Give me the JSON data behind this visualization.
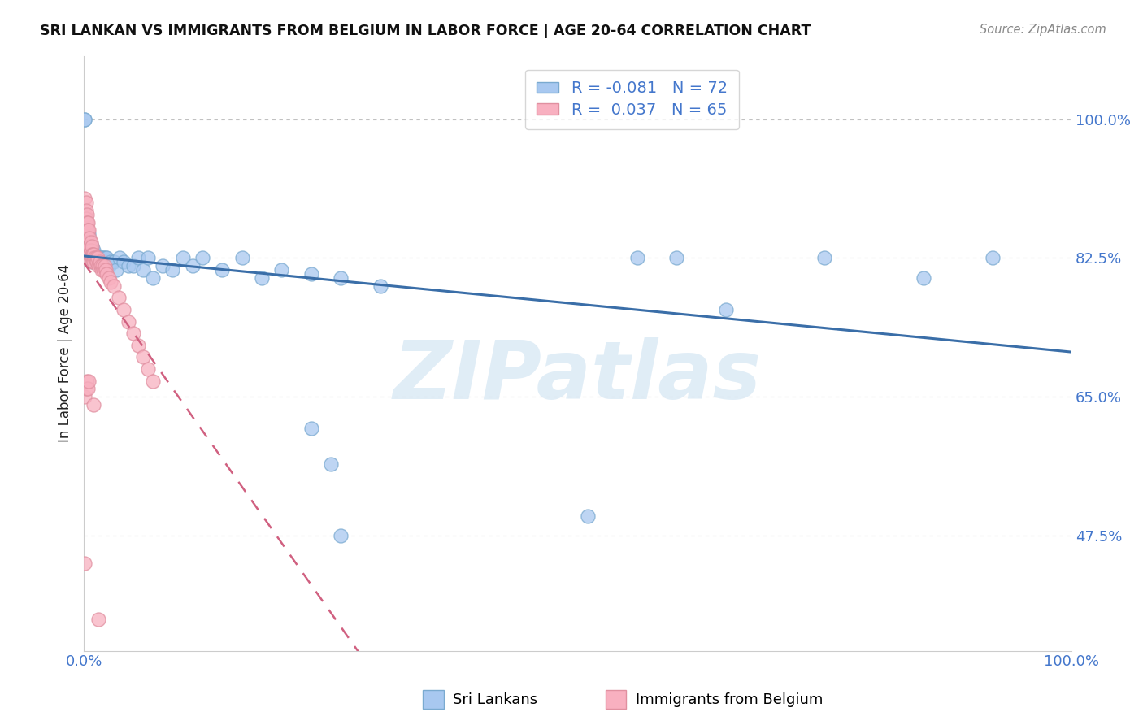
{
  "title": "SRI LANKAN VS IMMIGRANTS FROM BELGIUM IN LABOR FORCE | AGE 20-64 CORRELATION CHART",
  "source": "Source: ZipAtlas.com",
  "ylabel": "In Labor Force | Age 20-64",
  "background_color": "#ffffff",
  "watermark_text": "ZIPatlas",
  "legend_R_blue": "-0.081",
  "legend_N_blue": "72",
  "legend_R_pink": "0.037",
  "legend_N_pink": "65",
  "blue_scatter_color": "#a8c8f0",
  "blue_scatter_edge": "#7aaad0",
  "pink_scatter_color": "#f8b0c0",
  "pink_scatter_edge": "#e090a0",
  "trend_blue_color": "#3a6ea8",
  "trend_pink_color": "#d06080",
  "grid_color": "#bbbbbb",
  "tick_color": "#4477cc",
  "title_color": "#111111",
  "source_color": "#888888",
  "ylabel_color": "#222222",
  "ytick_vals": [
    0.475,
    0.65,
    0.825,
    1.0
  ],
  "ytick_labels": [
    "47.5%",
    "65.0%",
    "82.5%",
    "100.0%"
  ],
  "xlim": [
    0.0,
    1.0
  ],
  "ylim": [
    0.33,
    1.08
  ],
  "blue_x": [
    0.001,
    0.002,
    0.002,
    0.003,
    0.003,
    0.003,
    0.004,
    0.004,
    0.005,
    0.005,
    0.005,
    0.006,
    0.006,
    0.007,
    0.007,
    0.008,
    0.008,
    0.008,
    0.009,
    0.009,
    0.01,
    0.01,
    0.011,
    0.011,
    0.012,
    0.012,
    0.013,
    0.014,
    0.015,
    0.016,
    0.017,
    0.018,
    0.019,
    0.02,
    0.021,
    0.022,
    0.023,
    0.025,
    0.027,
    0.03,
    0.033,
    0.036,
    0.04,
    0.045,
    0.05,
    0.055,
    0.06,
    0.065,
    0.07,
    0.08,
    0.09,
    0.1,
    0.11,
    0.12,
    0.14,
    0.16,
    0.18,
    0.2,
    0.23,
    0.26,
    0.3,
    0.23,
    0.25,
    0.26,
    0.51,
    0.56,
    0.6,
    0.65,
    0.75,
    0.85,
    0.92,
    0.001
  ],
  "blue_y": [
    1.0,
    0.87,
    0.86,
    0.86,
    0.855,
    0.845,
    0.855,
    0.84,
    0.855,
    0.84,
    0.835,
    0.845,
    0.83,
    0.84,
    0.825,
    0.84,
    0.835,
    0.825,
    0.83,
    0.82,
    0.835,
    0.825,
    0.83,
    0.82,
    0.825,
    0.82,
    0.825,
    0.825,
    0.825,
    0.82,
    0.825,
    0.82,
    0.825,
    0.825,
    0.82,
    0.825,
    0.825,
    0.815,
    0.82,
    0.82,
    0.81,
    0.825,
    0.82,
    0.815,
    0.815,
    0.825,
    0.81,
    0.825,
    0.8,
    0.815,
    0.81,
    0.825,
    0.815,
    0.825,
    0.81,
    0.825,
    0.8,
    0.81,
    0.805,
    0.8,
    0.79,
    0.61,
    0.565,
    0.475,
    0.5,
    0.825,
    0.825,
    0.76,
    0.825,
    0.8,
    0.825,
    1.0
  ],
  "pink_x": [
    0.0005,
    0.001,
    0.001,
    0.001,
    0.002,
    0.002,
    0.002,
    0.002,
    0.003,
    0.003,
    0.003,
    0.003,
    0.003,
    0.004,
    0.004,
    0.004,
    0.004,
    0.005,
    0.005,
    0.005,
    0.006,
    0.006,
    0.006,
    0.007,
    0.007,
    0.007,
    0.008,
    0.008,
    0.008,
    0.009,
    0.009,
    0.01,
    0.01,
    0.011,
    0.012,
    0.013,
    0.014,
    0.015,
    0.016,
    0.017,
    0.018,
    0.019,
    0.02,
    0.021,
    0.022,
    0.023,
    0.025,
    0.027,
    0.03,
    0.035,
    0.04,
    0.045,
    0.05,
    0.055,
    0.06,
    0.065,
    0.07,
    0.0005,
    0.001,
    0.002,
    0.003,
    0.004,
    0.005,
    0.01,
    0.015
  ],
  "pink_y": [
    0.825,
    0.9,
    0.88,
    0.87,
    0.895,
    0.885,
    0.875,
    0.86,
    0.88,
    0.87,
    0.86,
    0.855,
    0.845,
    0.87,
    0.86,
    0.85,
    0.84,
    0.86,
    0.845,
    0.835,
    0.85,
    0.84,
    0.83,
    0.845,
    0.835,
    0.825,
    0.84,
    0.83,
    0.82,
    0.83,
    0.825,
    0.83,
    0.82,
    0.825,
    0.825,
    0.82,
    0.825,
    0.815,
    0.82,
    0.815,
    0.81,
    0.815,
    0.81,
    0.815,
    0.81,
    0.805,
    0.8,
    0.795,
    0.79,
    0.775,
    0.76,
    0.745,
    0.73,
    0.715,
    0.7,
    0.685,
    0.67,
    0.44,
    0.65,
    0.66,
    0.67,
    0.66,
    0.67,
    0.64,
    0.37
  ]
}
